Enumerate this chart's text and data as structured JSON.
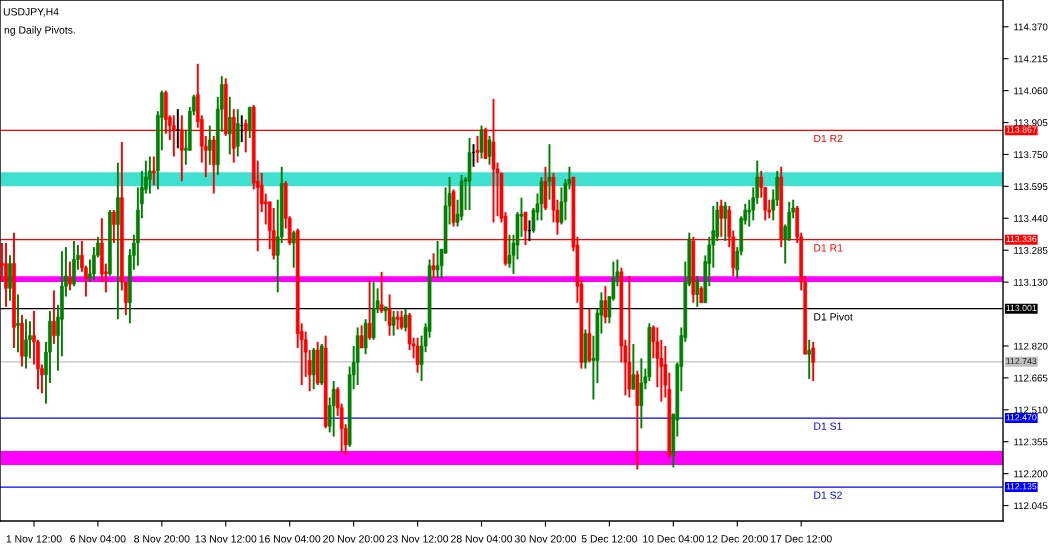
{
  "chart_data": {
    "type": "candlestick",
    "title": "USDJPY,H4",
    "annotations": [
      "ng Daily Pivots.",
      "113.867",
      "113.336",
      "113.001",
      "112.743",
      "112.470",
      "112.135"
    ],
    "categories": [
      null,
      null,
      null,
      null,
      null,
      null,
      null,
      null,
      "1 Nov 12:00",
      null,
      null,
      null,
      null,
      null,
      null,
      null,
      null,
      null,
      null,
      null,
      null,
      null,
      null,
      null,
      "6 Nov 04:00",
      null,
      null,
      null,
      null,
      null,
      null,
      null,
      null,
      null,
      null,
      null,
      null,
      null,
      null,
      null,
      "8 Nov 20:00",
      null,
      null,
      null,
      null,
      null,
      null,
      null,
      null,
      null,
      null,
      null,
      null,
      null,
      null,
      null,
      "13 Nov 12:00",
      null,
      null,
      null,
      null,
      null,
      null,
      null,
      null,
      null,
      null,
      null,
      null,
      null,
      null,
      null,
      "16 Nov 04:00",
      null,
      null,
      null,
      null,
      null,
      null,
      null,
      null,
      null,
      null,
      null,
      null,
      null,
      null,
      null,
      "20 Nov 20:00",
      null,
      null,
      null,
      null,
      null,
      null,
      null,
      null,
      null,
      null,
      null,
      null,
      null,
      null,
      null,
      "23 Nov 12:00",
      null,
      null,
      null,
      null,
      null,
      null,
      null,
      null,
      null,
      null,
      null,
      null,
      null,
      null,
      null,
      "28 Nov 04:00",
      null,
      null,
      null,
      null,
      null,
      null,
      null,
      null,
      null,
      null,
      null,
      null,
      null,
      null,
      null,
      "30 Nov 20:00",
      null,
      null,
      null,
      null,
      null,
      null,
      null,
      null,
      null,
      null,
      null,
      null,
      null,
      null,
      null,
      "5 Dec 12:00",
      null,
      null,
      null,
      null,
      null,
      null,
      null,
      null,
      null,
      null,
      null,
      null,
      null,
      null,
      null,
      "10 Dec 04:00",
      null,
      null,
      null,
      null,
      null,
      null,
      null,
      null,
      null,
      null,
      null,
      null,
      null,
      null,
      null,
      "12 Dec 20:00",
      null,
      null,
      null,
      null,
      null,
      null,
      null,
      null,
      null,
      null,
      null,
      null,
      null,
      null,
      null,
      "17 Dec 12:00",
      null,
      null,
      null,
      null,
      null,
      null,
      null,
      null,
      null,
      null,
      null,
      null,
      null,
      null,
      null,
      null,
      null,
      null,
      null,
      null,
      null,
      null,
      null,
      null,
      null,
      null,
      null,
      null,
      null,
      null,
      null,
      null,
      null,
      null,
      null,
      null,
      null,
      null,
      null,
      null,
      null,
      null,
      null,
      null,
      null,
      null,
      null,
      null,
      null,
      null
    ],
    "ohlc": [
      [
        113.22,
        113.32,
        113.13,
        113.21
      ],
      [
        113.22,
        113.32,
        113.01,
        113.1
      ],
      [
        113.1,
        113.26,
        113.04,
        113.22
      ],
      [
        113.22,
        113.37,
        112.81,
        112.91
      ],
      [
        112.92,
        113.07,
        112.79,
        112.93
      ],
      [
        112.93,
        112.97,
        112.72,
        112.77
      ],
      [
        112.77,
        112.95,
        112.71,
        112.85
      ],
      [
        112.85,
        112.94,
        112.76,
        112.87
      ],
      [
        112.87,
        112.99,
        112.73,
        112.84
      ],
      [
        112.84,
        112.85,
        112.61,
        112.71
      ],
      [
        112.71,
        112.73,
        112.59,
        112.68
      ],
      [
        112.68,
        112.84,
        112.54,
        112.79
      ],
      [
        112.79,
        112.99,
        112.64,
        112.94
      ],
      [
        112.94,
        113.09,
        112.83,
        112.87
      ],
      [
        112.87,
        113.02,
        112.7,
        112.96
      ],
      [
        112.95,
        113.28,
        112.77,
        113.11
      ],
      [
        113.11,
        113.3,
        113.06,
        113.16
      ],
      [
        113.15,
        113.23,
        113.09,
        113.12
      ],
      [
        113.12,
        113.33,
        113.11,
        113.24
      ],
      [
        113.24,
        113.31,
        113.19,
        113.26
      ],
      [
        113.26,
        113.33,
        113.18,
        113.2
      ],
      [
        113.2,
        113.21,
        113.06,
        113.15
      ],
      [
        113.15,
        113.24,
        113.13,
        113.17
      ],
      [
        113.17,
        113.3,
        113.14,
        113.26
      ],
      [
        113.26,
        113.35,
        113.25,
        113.32
      ],
      [
        113.32,
        113.44,
        113.13,
        113.17
      ],
      [
        113.18,
        113.22,
        113.08,
        113.17
      ],
      [
        113.17,
        113.48,
        113.16,
        113.47
      ],
      [
        113.47,
        113.48,
        113.32,
        113.41
      ],
      [
        113.41,
        113.71,
        112.95,
        113.54
      ],
      [
        113.54,
        113.81,
        113.09,
        113.13
      ],
      [
        113.13,
        113.13,
        112.97,
        113.03
      ],
      [
        113.03,
        113.29,
        112.93,
        113.26
      ],
      [
        113.26,
        113.36,
        113.19,
        113.32
      ],
      [
        113.32,
        113.59,
        113.21,
        113.48
      ],
      [
        113.51,
        113.67,
        113.44,
        113.59
      ],
      [
        113.58,
        113.72,
        113.56,
        113.64
      ],
      [
        113.63,
        113.74,
        113.56,
        113.67
      ],
      [
        113.67,
        113.74,
        113.6,
        113.66
      ],
      [
        113.67,
        113.96,
        113.58,
        113.94
      ],
      [
        113.93,
        114.06,
        113.77,
        114.05
      ],
      [
        114.05,
        114.06,
        113.85,
        113.92
      ],
      [
        113.93,
        113.94,
        113.82,
        113.89
      ],
      [
        113.89,
        113.94,
        113.74,
        113.87
      ],
      [
        113.87,
        113.97,
        113.78,
        113.87
      ],
      [
        113.87,
        113.94,
        113.62,
        113.77
      ],
      [
        113.77,
        113.87,
        113.7,
        113.78
      ],
      [
        113.77,
        113.98,
        113.77,
        113.96
      ],
      [
        113.96,
        114.04,
        113.94,
        114.03
      ],
      [
        114.04,
        114.19,
        113.88,
        113.91
      ],
      [
        113.92,
        113.94,
        113.71,
        113.79
      ],
      [
        113.79,
        113.84,
        113.64,
        113.77
      ],
      [
        113.77,
        113.89,
        113.7,
        113.82
      ],
      [
        113.82,
        113.84,
        113.56,
        113.7
      ],
      [
        113.7,
        114.03,
        113.65,
        113.97
      ],
      [
        113.97,
        114.13,
        113.86,
        114.09
      ],
      [
        114.09,
        114.12,
        113.84,
        113.85
      ],
      [
        113.85,
        114.03,
        113.75,
        113.93
      ],
      [
        113.93,
        113.97,
        113.71,
        113.78
      ],
      [
        113.79,
        113.97,
        113.74,
        113.9
      ],
      [
        113.89,
        113.94,
        113.81,
        113.89
      ],
      [
        113.9,
        113.92,
        113.76,
        113.87
      ],
      [
        113.87,
        113.98,
        113.83,
        113.98
      ],
      [
        113.98,
        113.99,
        113.58,
        113.61
      ],
      [
        113.62,
        113.72,
        113.28,
        113.59
      ],
      [
        113.6,
        113.66,
        113.47,
        113.51
      ],
      [
        113.52,
        113.56,
        113.41,
        113.51
      ],
      [
        113.52,
        113.52,
        113.29,
        113.38
      ],
      [
        113.38,
        113.49,
        113.24,
        113.26
      ],
      [
        113.26,
        113.53,
        113.08,
        113.35
      ],
      [
        113.35,
        113.69,
        113.32,
        113.61
      ],
      [
        113.61,
        113.62,
        113.39,
        113.44
      ],
      [
        113.44,
        113.45,
        113.31,
        113.32
      ],
      [
        113.32,
        113.38,
        113.2,
        113.37
      ],
      [
        113.38,
        113.39,
        112.81,
        112.88
      ],
      [
        112.89,
        112.93,
        112.63,
        112.85
      ],
      [
        112.85,
        112.89,
        112.67,
        112.79
      ],
      [
        112.75,
        112.8,
        112.6,
        112.68
      ],
      [
        112.68,
        112.81,
        112.61,
        112.8
      ],
      [
        112.8,
        112.84,
        112.63,
        112.64
      ],
      [
        112.64,
        112.83,
        112.63,
        112.82
      ],
      [
        112.81,
        112.87,
        112.42,
        112.43
      ],
      [
        112.43,
        112.57,
        112.4,
        112.53
      ],
      [
        112.53,
        112.65,
        112.38,
        112.61
      ],
      [
        112.61,
        112.62,
        112.48,
        112.52
      ],
      [
        112.52,
        112.54,
        112.3,
        112.42
      ],
      [
        112.42,
        112.44,
        112.29,
        112.34
      ],
      [
        112.34,
        112.72,
        112.33,
        112.68
      ],
      [
        112.68,
        112.82,
        112.61,
        112.74
      ],
      [
        112.74,
        112.91,
        112.63,
        112.87
      ],
      [
        112.87,
        112.92,
        112.81,
        112.81
      ],
      [
        112.81,
        112.95,
        112.78,
        112.93
      ],
      [
        112.93,
        113.14,
        112.85,
        112.86
      ],
      [
        112.86,
        113.13,
        112.85,
        113.0
      ],
      [
        113.0,
        113.1,
        112.98,
        113.04
      ],
      [
        113.02,
        113.18,
        112.98,
        112.99
      ],
      [
        112.99,
        113.01,
        112.94,
        113.01
      ],
      [
        113.0,
        113.07,
        112.87,
        112.92
      ],
      [
        112.92,
        112.99,
        112.87,
        112.96
      ],
      [
        112.96,
        112.99,
        112.9,
        112.95
      ],
      [
        112.96,
        112.99,
        112.9,
        112.91
      ],
      [
        112.91,
        113.0,
        112.89,
        112.97
      ],
      [
        112.97,
        112.98,
        112.8,
        112.83
      ],
      [
        112.83,
        112.86,
        112.76,
        112.82
      ],
      [
        112.82,
        112.86,
        112.69,
        112.73
      ],
      [
        112.73,
        112.87,
        112.65,
        112.82
      ],
      [
        112.82,
        112.93,
        112.79,
        112.91
      ],
      [
        112.89,
        113.24,
        112.86,
        113.21
      ],
      [
        113.21,
        113.27,
        113.15,
        113.19
      ],
      [
        113.19,
        113.33,
        113.15,
        113.21
      ],
      [
        113.21,
        113.29,
        113.15,
        113.29
      ],
      [
        113.27,
        113.59,
        113.27,
        113.5
      ],
      [
        113.5,
        113.64,
        113.41,
        113.56
      ],
      [
        113.57,
        113.58,
        113.4,
        113.42
      ],
      [
        113.42,
        113.53,
        113.4,
        113.46
      ],
      [
        113.45,
        113.65,
        113.43,
        113.62
      ],
      [
        113.62,
        113.64,
        113.48,
        113.63
      ],
      [
        113.62,
        113.83,
        113.48,
        113.76
      ],
      [
        113.76,
        113.8,
        113.69,
        113.76
      ],
      [
        113.77,
        113.84,
        113.71,
        113.76
      ],
      [
        113.76,
        113.89,
        113.73,
        113.87
      ],
      [
        113.87,
        113.88,
        113.73,
        113.73
      ],
      [
        113.74,
        113.84,
        113.7,
        113.82
      ],
      [
        113.81,
        114.02,
        113.42,
        113.68
      ],
      [
        113.68,
        113.71,
        113.45,
        113.66
      ],
      [
        113.66,
        113.66,
        113.42,
        113.44
      ],
      [
        113.45,
        113.47,
        113.21,
        113.22
      ],
      [
        113.22,
        113.36,
        113.2,
        113.26
      ],
      [
        113.26,
        113.36,
        113.17,
        113.32
      ],
      [
        113.31,
        113.47,
        113.24,
        113.46
      ],
      [
        113.45,
        113.54,
        113.35,
        113.46
      ],
      [
        113.47,
        113.47,
        113.31,
        113.38
      ],
      [
        113.38,
        113.43,
        113.33,
        113.38
      ],
      [
        113.38,
        113.49,
        113.37,
        113.48
      ],
      [
        113.47,
        113.56,
        113.43,
        113.51
      ],
      [
        113.51,
        113.64,
        113.43,
        113.62
      ],
      [
        113.62,
        113.69,
        113.48,
        113.49
      ],
      [
        113.62,
        113.8,
        113.53,
        113.64
      ],
      [
        113.64,
        113.66,
        113.42,
        113.48
      ],
      [
        113.48,
        113.53,
        113.36,
        113.42
      ],
      [
        113.42,
        113.59,
        113.41,
        113.52
      ],
      [
        113.52,
        113.63,
        113.43,
        113.61
      ],
      [
        113.61,
        113.69,
        113.58,
        113.63
      ],
      [
        113.64,
        113.64,
        113.28,
        113.3
      ],
      [
        113.31,
        113.35,
        113.03,
        113.11
      ],
      [
        113.12,
        113.14,
        112.71,
        112.74
      ],
      [
        112.74,
        112.9,
        112.71,
        112.88
      ],
      [
        112.88,
        113.0,
        112.74,
        112.75
      ],
      [
        112.75,
        112.87,
        112.56,
        112.76
      ],
      [
        112.75,
        113.0,
        112.64,
        112.98
      ],
      [
        112.97,
        113.08,
        112.88,
        113.04
      ],
      [
        113.04,
        113.11,
        112.93,
        112.96
      ],
      [
        112.96,
        113.06,
        112.93,
        113.06
      ],
      [
        113.05,
        113.23,
        113.04,
        113.15
      ],
      [
        113.15,
        113.24,
        113.11,
        113.18
      ],
      [
        113.18,
        113.2,
        112.74,
        112.82
      ],
      [
        112.82,
        112.85,
        112.58,
        112.74
      ],
      [
        112.74,
        113.16,
        112.57,
        112.61
      ],
      [
        112.61,
        112.83,
        112.61,
        112.68
      ],
      [
        112.68,
        112.7,
        112.22,
        112.53
      ],
      [
        112.53,
        112.76,
        112.42,
        112.64
      ],
      [
        112.64,
        112.71,
        112.61,
        112.67
      ],
      [
        112.67,
        112.93,
        112.65,
        112.91
      ],
      [
        112.91,
        112.92,
        112.76,
        112.84
      ],
      [
        112.84,
        112.91,
        112.62,
        112.76
      ],
      [
        112.76,
        112.85,
        112.55,
        112.72
      ],
      [
        112.73,
        112.82,
        112.57,
        112.63
      ],
      [
        112.61,
        112.69,
        112.28,
        112.29
      ],
      [
        112.29,
        112.49,
        112.23,
        112.49
      ],
      [
        112.46,
        112.74,
        112.38,
        112.73
      ],
      [
        112.72,
        112.91,
        112.6,
        112.87
      ],
      [
        112.86,
        113.23,
        112.84,
        113.13
      ],
      [
        113.12,
        113.37,
        113.11,
        113.34
      ],
      [
        113.33,
        113.35,
        113.03,
        113.07
      ],
      [
        113.07,
        113.16,
        113.01,
        113.14
      ],
      [
        113.1,
        113.11,
        113.03,
        113.03
      ],
      [
        113.03,
        113.26,
        113.03,
        113.23
      ],
      [
        113.22,
        113.35,
        113.11,
        113.31
      ],
      [
        113.31,
        113.5,
        113.2,
        113.38
      ],
      [
        113.35,
        113.52,
        113.33,
        113.48
      ],
      [
        113.5,
        113.53,
        113.35,
        113.44
      ],
      [
        113.44,
        113.52,
        113.33,
        113.5
      ],
      [
        113.48,
        113.5,
        113.3,
        113.35
      ],
      [
        113.35,
        113.38,
        113.16,
        113.2
      ],
      [
        113.19,
        113.3,
        113.15,
        113.28
      ],
      [
        113.28,
        113.45,
        113.26,
        113.44
      ],
      [
        113.43,
        113.51,
        113.41,
        113.48
      ],
      [
        113.47,
        113.53,
        113.4,
        113.48
      ],
      [
        113.48,
        113.59,
        113.43,
        113.54
      ],
      [
        113.54,
        113.72,
        113.51,
        113.64
      ],
      [
        113.64,
        113.67,
        113.54,
        113.59
      ],
      [
        113.59,
        113.59,
        113.43,
        113.48
      ],
      [
        113.48,
        113.53,
        113.44,
        113.47
      ],
      [
        113.48,
        113.58,
        113.43,
        113.53
      ],
      [
        113.53,
        113.67,
        113.5,
        113.64
      ],
      [
        113.64,
        113.69,
        113.3,
        113.34
      ],
      [
        113.34,
        113.41,
        113.22,
        113.4
      ],
      [
        113.34,
        113.52,
        113.33,
        113.47
      ],
      [
        113.47,
        113.53,
        113.44,
        113.49
      ],
      [
        113.49,
        113.5,
        113.32,
        113.35
      ],
      [
        113.35,
        113.37,
        113.09,
        113.13
      ],
      [
        113.13,
        113.16,
        112.78,
        112.78
      ],
      [
        112.78,
        112.85,
        112.66,
        112.8
      ],
      [
        112.81,
        112.84,
        112.65,
        112.74
      ],
      null,
      null,
      null,
      null,
      null,
      null,
      null,
      null,
      null,
      null,
      null,
      null,
      null,
      null,
      null,
      null,
      null,
      null,
      null,
      null,
      null,
      null,
      null,
      null,
      null,
      null,
      null,
      null,
      null,
      null,
      null,
      null,
      null,
      null,
      null,
      null,
      null,
      null,
      null,
      null,
      null,
      null,
      null,
      null,
      null,
      null,
      null
    ],
    "colors": [
      "#ff0000",
      "#ff0000",
      "#008000",
      "#ff0000",
      "#008000",
      "#ff0000",
      "#008000",
      "#008000",
      "#ff0000",
      "#ff0000",
      "#ff0000",
      "#008000",
      "#008000",
      "#ff0000",
      "#008000",
      "#008000",
      "#008000",
      "#ff0000",
      "#008000",
      "#008000",
      "#ff0000",
      "#ff0000",
      "#008000",
      "#008000",
      "#008000",
      "#ff0000",
      "#ff0000",
      "#008000",
      "#ff0000",
      "#008000",
      "#ff0000",
      "#ff0000",
      "#008000",
      "#008000",
      "#008000",
      "#008000",
      "#008000",
      "#008000",
      "#ff0000",
      "#008000",
      "#008000",
      "#ff0000",
      "#ff0000",
      "#ff0000",
      "#000000",
      "#ff0000",
      "#008000",
      "#008000",
      "#008000",
      "#ff0000",
      "#ff0000",
      "#ff0000",
      "#008000",
      "#ff0000",
      "#008000",
      "#008000",
      "#ff0000",
      "#008000",
      "#ff0000",
      "#008000",
      "#000000",
      "#ff0000",
      "#008000",
      "#ff0000",
      "#ff0000",
      "#ff0000",
      "#ff0000",
      "#ff0000",
      "#ff0000",
      "#008000",
      "#008000",
      "#ff0000",
      "#ff0000",
      "#008000",
      "#ff0000",
      "#ff0000",
      "#ff0000",
      "#ff0000",
      "#008000",
      "#ff0000",
      "#008000",
      "#ff0000",
      "#008000",
      "#008000",
      "#ff0000",
      "#ff0000",
      "#ff0000",
      "#008000",
      "#008000",
      "#008000",
      "#ff0000",
      "#008000",
      "#ff0000",
      "#008000",
      "#008000",
      "#ff0000",
      "#008000",
      "#ff0000",
      "#008000",
      "#ff0000",
      "#ff0000",
      "#008000",
      "#ff0000",
      "#ff0000",
      "#ff0000",
      "#008000",
      "#008000",
      "#008000",
      "#ff0000",
      "#008000",
      "#008000",
      "#008000",
      "#008000",
      "#ff0000",
      "#008000",
      "#008000",
      "#008000",
      "#008000",
      "#000000",
      "#ff0000",
      "#008000",
      "#ff0000",
      "#008000",
      "#ff0000",
      "#ff0000",
      "#ff0000",
      "#ff0000",
      "#008000",
      "#008000",
      "#008000",
      "#008000",
      "#ff0000",
      "#000000",
      "#008000",
      "#008000",
      "#008000",
      "#ff0000",
      "#008000",
      "#ff0000",
      "#ff0000",
      "#008000",
      "#008000",
      "#008000",
      "#ff0000",
      "#ff0000",
      "#ff0000",
      "#008000",
      "#ff0000",
      "#008000",
      "#008000",
      "#008000",
      "#ff0000",
      "#008000",
      "#008000",
      "#008000",
      "#ff0000",
      "#ff0000",
      "#ff0000",
      "#008000",
      "#ff0000",
      "#008000",
      "#008000",
      "#008000",
      "#ff0000",
      "#ff0000",
      "#ff0000",
      "#ff0000",
      "#ff0000",
      "#008000",
      "#008000",
      "#008000",
      "#008000",
      "#008000",
      "#ff0000",
      "#008000",
      "#ff0000",
      "#008000",
      "#008000",
      "#008000",
      "#008000",
      "#ff0000",
      "#008000",
      "#ff0000",
      "#ff0000",
      "#008000",
      "#008000",
      "#008000",
      "#008000",
      "#008000",
      "#008000",
      "#ff0000",
      "#ff0000",
      "#ff0000",
      "#008000",
      "#008000",
      "#ff0000",
      "#008000",
      "#008000",
      "#008000",
      "#ff0000",
      "#ff0000",
      "#ff0000",
      "#008000",
      "#ff0000",
      null,
      null,
      null,
      null,
      null,
      null,
      null,
      null,
      null,
      null,
      null,
      null,
      null,
      null,
      null,
      null,
      null,
      null,
      null,
      null,
      null,
      null,
      null,
      null,
      null,
      null,
      null,
      null,
      null,
      null,
      null,
      null,
      null,
      null,
      null,
      null,
      null,
      null,
      null,
      null,
      null,
      null,
      null,
      null,
      null,
      null,
      null
    ],
    "ylim": [
      111.97,
      114.5
    ],
    "yticks": [
      {
        "value": 112.045,
        "label": "112.045"
      },
      {
        "value": 112.2,
        "label": "112.200"
      },
      {
        "value": 112.355,
        "label": "112.355"
      },
      {
        "value": 112.51,
        "label": "112.510"
      },
      {
        "value": 112.665,
        "label": "112.665"
      },
      {
        "value": 112.82,
        "label": "112.820"
      },
      {
        "value": 113.13,
        "label": "113.130"
      },
      {
        "value": 113.285,
        "label": "113.285"
      },
      {
        "value": 113.44,
        "label": "113.440"
      },
      {
        "value": 113.595,
        "label": "113.595"
      },
      {
        "value": 113.75,
        "label": "113.750"
      },
      {
        "value": 113.905,
        "label": "113.905"
      },
      {
        "value": 114.06,
        "label": "114.060"
      },
      {
        "value": 114.215,
        "label": "114.215"
      },
      {
        "value": 114.37,
        "label": "114.370"
      }
    ],
    "ref_lines": [
      {
        "axis": "y",
        "value": 113.867,
        "label": "D1 R2",
        "color": "#ff0000"
      },
      {
        "axis": "y",
        "value": 113.336,
        "label": "D1 R1",
        "color": "#ff0000"
      },
      {
        "axis": "y",
        "value": 113.001,
        "label": "D1 Pivot",
        "color": "#000000"
      },
      {
        "axis": "y",
        "value": 112.743,
        "color": "#c0c0c0"
      },
      {
        "axis": "y",
        "value": 112.47,
        "label": "D1 S1",
        "color": "#0000ff"
      },
      {
        "axis": "y",
        "value": 112.135,
        "label": "D1 S2",
        "color": "#0000ff"
      }
    ],
    "bands": [
      {
        "axis": "y",
        "from": 113.595,
        "to": 113.663,
        "color": "#40e0d0"
      },
      {
        "axis": "y",
        "from": 113.13,
        "to": 113.159,
        "color": "#ff00ff"
      },
      {
        "axis": "y",
        "from": 112.242,
        "to": 112.31,
        "color": "#ff00ff"
      }
    ],
    "grid": false,
    "legend": false
  }
}
